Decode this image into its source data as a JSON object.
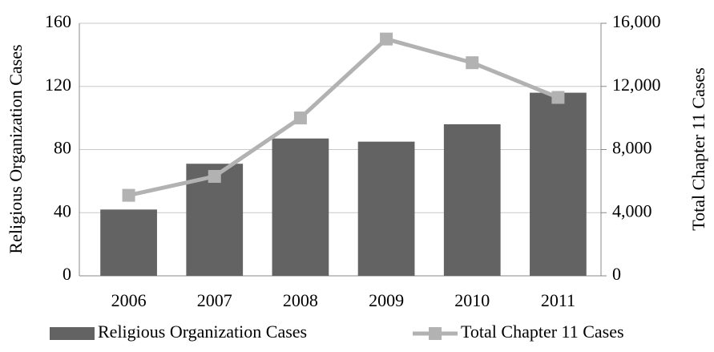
{
  "chart_data": {
    "type": "bar",
    "categories": [
      "2006",
      "2007",
      "2008",
      "2009",
      "2010",
      "2011"
    ],
    "series": [
      {
        "name": "Religious Organization Cases",
        "color": "#636363",
        "values": [
          42,
          71,
          87,
          85,
          96,
          116
        ]
      },
      {
        "name": "Total Chapter 11 Cases",
        "color": "#b2b2b2",
        "type": "line",
        "axis": "y2",
        "values": [
          5100,
          6300,
          10000,
          15000,
          13500,
          11300
        ]
      }
    ],
    "ylabel": "Religious Organization Cases",
    "y2label": "Total Chapter 11 Cases",
    "ylim": [
      0,
      160
    ],
    "yticks": [
      0,
      40,
      80,
      120,
      160
    ],
    "y2lim": [
      0,
      16000
    ],
    "y2ticks": [
      0,
      {
        "value": 4000,
        "label": "4,000"
      },
      {
        "value": 8000,
        "label": "8,000"
      },
      {
        "value": 12000,
        "label": "12,000"
      },
      {
        "value": 16000,
        "label": "16,000"
      }
    ],
    "grid": true,
    "legend": "bottom"
  }
}
